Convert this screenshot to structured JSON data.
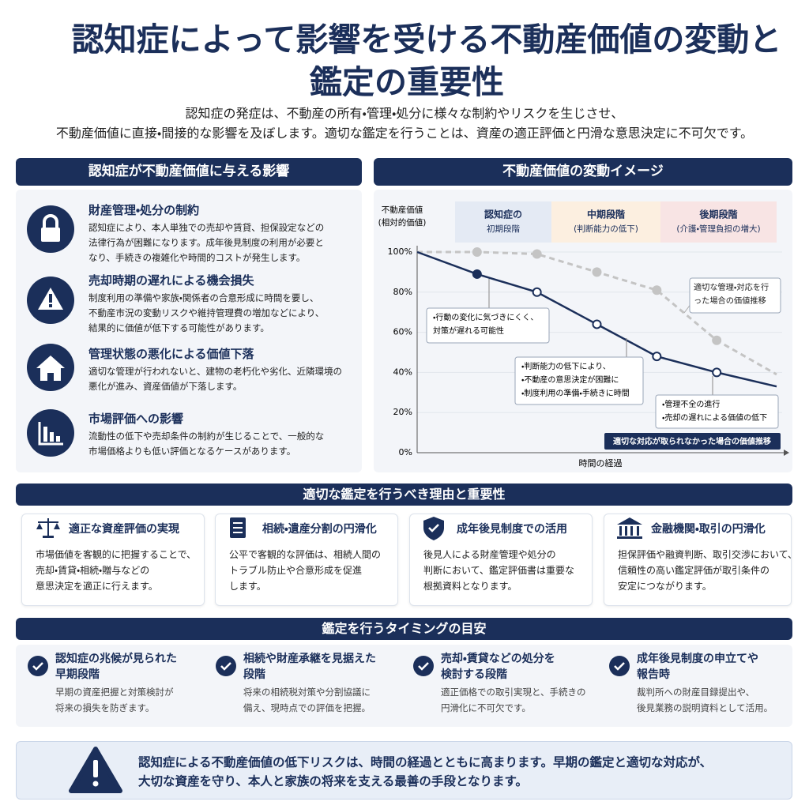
{
  "header": {
    "title": [
      "認知症によって影響を受ける不動産価値の変動と",
      "鑑定の重要性"
    ],
    "subtitle": [
      "認知症の発症は、不動産の所有・管理・処分に様々な制約やリスクを生じさせ、",
      "不動産価値に直接・間接的な影響を及ぼします。適切な鑑定を行うことは、資産の適正評価と円滑な意思決定に不可欠です。"
    ]
  },
  "impact": {
    "heading": "認知症が不動産価値に与える影響",
    "items": [
      {
        "title": "財産管理・処分の制約",
        "lines": [
          "認知症により、本人単独での売却や賃貸、担保設定などの",
          "法律行為が困難になります。成年後見制度の利用が必要と",
          "なり、手続きの複雑化や時間的コストが発生します。"
        ]
      },
      {
        "title": "売却時期の遅れによる機会損失",
        "lines": [
          "制度利用の準備や家族・関係者の合意形成に時間を要し、",
          "不動産市況の変動リスクや維持管理費の増加などにより、",
          "結果的に価値が低下する可能性があります。"
        ]
      },
      {
        "title": "管理状態の悪化による価値下落",
        "lines": [
          "適切な管理が行われないと、建物の老朽化や劣化、近隣環境の",
          "悪化が進み、資産価値が下落します。"
        ]
      },
      {
        "title": "市場評価への影響",
        "lines": [
          "流動性の低下や売却条件の制約が生じることで、一般的な",
          "市場価格よりも低い評価となるケースがあります。"
        ]
      }
    ]
  },
  "chart_data": {
    "type": "line",
    "title": "不動産価値の変動イメージ",
    "ylabel": [
      "不動産価値",
      "(相対的価値)"
    ],
    "xlabel": "時間の経過",
    "categories": [
      null,
      null,
      null,
      null,
      null,
      null,
      null
    ],
    "ylim": [
      0,
      100
    ],
    "yticks": [
      {
        "value": 0,
        "label": "0%"
      },
      {
        "value": 20,
        "label": "20%"
      },
      {
        "value": 40,
        "label": "40%"
      },
      {
        "value": 60,
        "label": "60%"
      },
      {
        "value": 80,
        "label": "80%"
      },
      {
        "value": 100,
        "label": "100%"
      }
    ],
    "grid": true,
    "phases": [
      {
        "lines": [
          "認知症の",
          "初期段階"
        ],
        "color": "#e4eaf4"
      },
      {
        "lines": [
          "中期段階",
          "(判断能力の低下)"
        ],
        "color": "#fcefe0"
      },
      {
        "lines": [
          "後期段階",
          "(介護・管理負担の増大)"
        ],
        "color": "#f8e4e4"
      }
    ],
    "series": [
      {
        "name": "適切な対応が取られなかった場合の価値推移",
        "color": "#1b2f5a",
        "style": "solid",
        "values": [
          100,
          89,
          80,
          64,
          48,
          40,
          33
        ]
      },
      {
        "name": "適切な管理・対応を行った場合の価値推移",
        "color": "#c4c4c4",
        "style": "dashed",
        "values": [
          100,
          100,
          99,
          90,
          81,
          56,
          39
        ]
      }
    ],
    "annotations": [
      {
        "lines": [
          "・行動の変化に気づきにくく、",
          "対策が遅れる可能性"
        ]
      },
      {
        "lines": [
          "・判断能力の低下により、",
          "・不動産の意思決定が困難に",
          "・制度利用の準備・手続きに時間"
        ]
      },
      {
        "lines": [
          "・管理不全の進行",
          "・売却の遅れによる価値の低下"
        ]
      }
    ]
  },
  "reasons": {
    "heading": "適切な鑑定を行うべき理由と重要性",
    "cards": [
      {
        "title": "適正な資産評価の実現",
        "lines": [
          "市場価値を客観的に把握することで、",
          "売却・賃貸・相続・贈与などの",
          "意思決定を適正に行えます。"
        ]
      },
      {
        "title": "相続・遺産分割の円滑化",
        "lines": [
          "公平で客観的な評価は、相続人間の",
          "トラブル防止や合意形成を促進",
          "します。"
        ]
      },
      {
        "title": "成年後見制度での活用",
        "lines": [
          "後見人による財産管理や処分の",
          "判断において、鑑定評価書は重要な",
          "根拠資料となります。"
        ]
      },
      {
        "title": "金融機関・取引の円滑化",
        "lines": [
          "担保評価や融資判断、取引交渉において、",
          "信頼性の高い鑑定評価が取引条件の",
          "安定につながります。"
        ]
      }
    ]
  },
  "timing": {
    "heading": "鑑定を行うタイミングの目安",
    "items": [
      {
        "title": [
          "認知症の兆候が見られた",
          "早期段階"
        ],
        "lines": [
          "早期の資産把握と対策検討が",
          "将来の損失を防ぎます。"
        ]
      },
      {
        "title": [
          "相続や財産承継を見据えた",
          "段階"
        ],
        "lines": [
          "将来の相続税対策や分割協議に",
          "備え、現時点での評価を把握。"
        ]
      },
      {
        "title": [
          "売却・賃貸などの処分を",
          "検討する段階"
        ],
        "lines": [
          "適正価格での取引実現と、手続きの",
          "円滑化に不可欠です。"
        ]
      },
      {
        "title": [
          "成年後見制度の申立てや",
          "報告時"
        ],
        "lines": [
          "裁判所への財産目録提出や、",
          "後見業務の説明資料として活用。"
        ]
      }
    ]
  },
  "footer": {
    "lines": [
      "認知症による不動産価値の低下リスクは、時間の経過とともに高まります。早期の鑑定と適切な対応が、",
      "大切な資産を守り、本人と家族の将来を支える最善の手段となります。"
    ]
  }
}
